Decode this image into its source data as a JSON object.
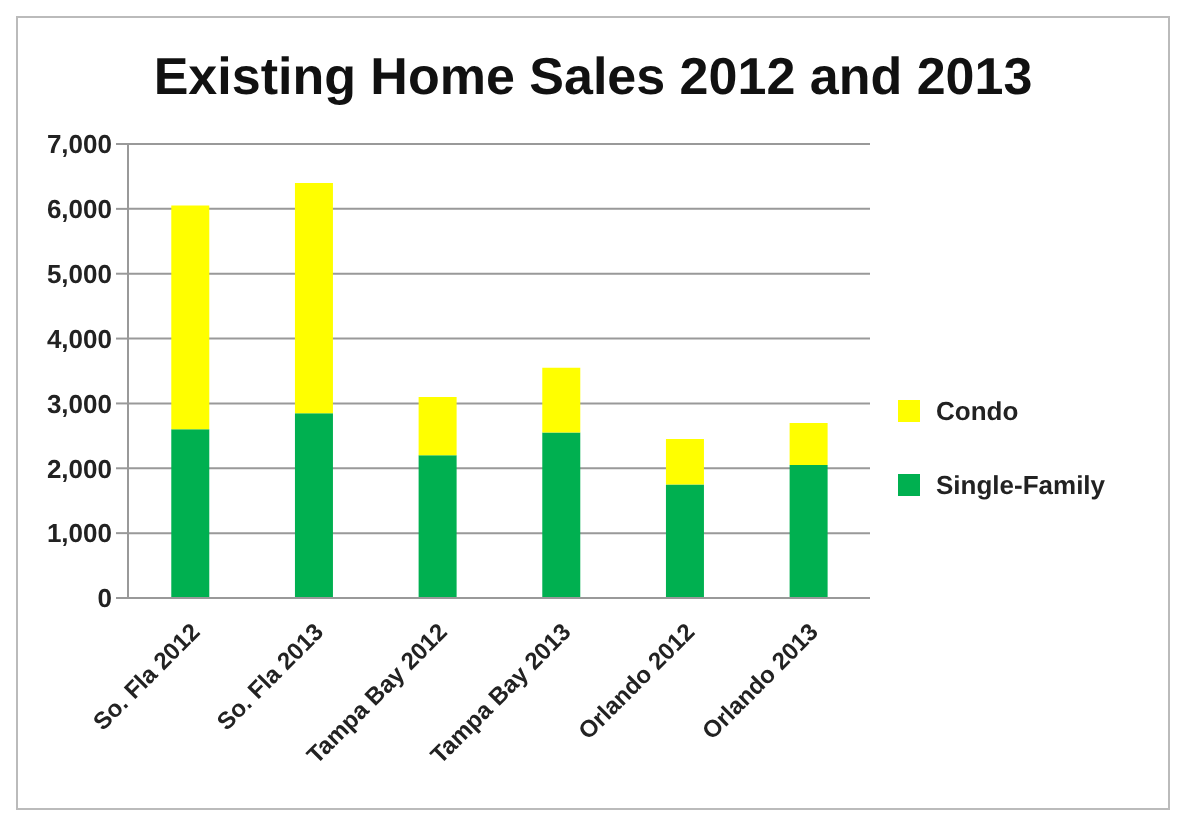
{
  "chart_data": {
    "type": "bar",
    "title": "Existing Home Sales 2012 and 2013",
    "categories": [
      "So. Fla 2012",
      "So. Fla 2013",
      "Tampa Bay 2012",
      "Tampa Bay 2013",
      "Orlando 2012",
      "Orlando 2013"
    ],
    "stacked": true,
    "series": [
      {
        "name": "Single-Family",
        "color": "#00b050",
        "values": [
          2600,
          2850,
          2200,
          2550,
          1750,
          2050
        ]
      },
      {
        "name": "Condo",
        "color": "#ffff00",
        "values": [
          3450,
          3550,
          900,
          1000,
          700,
          650
        ]
      }
    ],
    "ylim": [
      0,
      7000
    ],
    "yticks": [
      {
        "value": 0,
        "label": "0"
      },
      {
        "value": 1000,
        "label": "1,000"
      },
      {
        "value": 2000,
        "label": "2,000"
      },
      {
        "value": 3000,
        "label": "3,000"
      },
      {
        "value": 4000,
        "label": "4,000"
      },
      {
        "value": 5000,
        "label": "5,000"
      },
      {
        "value": 6000,
        "label": "6,000"
      },
      {
        "value": 7000,
        "label": "7,000"
      }
    ],
    "grid": "y",
    "legend": "right"
  }
}
